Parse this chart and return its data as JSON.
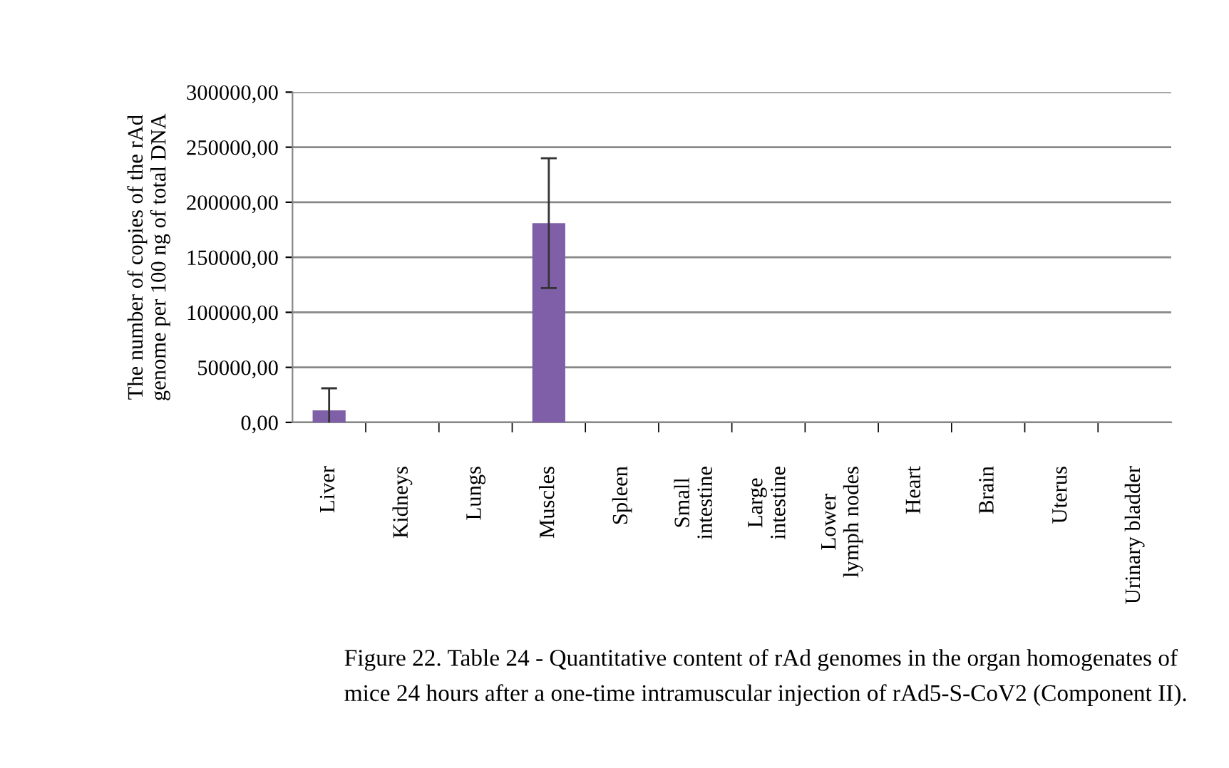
{
  "chart_data": {
    "type": "bar",
    "ylabel": "The number of copies of the rAd\ngenome per 100 ng of total DNA",
    "categories": [
      "Liver",
      "Kidneys",
      "Lungs",
      "Muscles",
      "Spleen",
      "Small\nintestine",
      "Large\nintestine",
      "Lower\nlymph nodes",
      "Heart",
      "Brain",
      "Uterus",
      "Urinary bladder"
    ],
    "values": [
      11000,
      0,
      0,
      181000,
      0,
      0,
      0,
      0,
      0,
      0,
      0,
      0
    ],
    "errors": [
      20000,
      null,
      null,
      59000,
      null,
      null,
      null,
      null,
      null,
      null,
      null,
      null
    ],
    "color": "#7f60a8",
    "ylim": [
      0,
      300000
    ],
    "yticks": [
      {
        "value": 0,
        "label": "0,00"
      },
      {
        "value": 50000,
        "label": "50000,00"
      },
      {
        "value": 100000,
        "label": "100000,00"
      },
      {
        "value": 150000,
        "label": "150000,00"
      },
      {
        "value": 200000,
        "label": "200000,00"
      },
      {
        "value": 250000,
        "label": "250000,00"
      },
      {
        "value": 300000,
        "label": "300000,00"
      }
    ],
    "grid": "y",
    "annotations": [
      "Figure 22. Table 24 - Quantitative content of rAd genomes in the organ homogenates of\nmice 24 hours after a one-time intramuscular injection of rAd5-S-CoV2 (Component II)."
    ]
  }
}
